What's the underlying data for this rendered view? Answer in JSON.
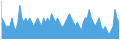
{
  "chart_data": {
    "type": "area",
    "values": [
      5,
      4,
      3,
      3,
      3,
      5,
      3,
      2,
      4,
      8,
      5,
      4,
      5,
      4,
      5,
      4,
      3,
      4,
      5,
      4,
      3,
      5,
      4,
      5,
      4,
      6,
      5,
      4,
      5,
      4,
      3,
      3,
      4,
      5,
      6,
      5,
      4,
      3,
      4,
      3,
      2,
      4,
      5,
      5,
      7,
      5,
      4,
      3,
      4,
      5,
      3,
      2,
      3,
      2,
      1,
      2,
      3,
      7,
      5,
      4
    ],
    "color": "#4da6e0",
    "ylim": [
      0,
      9
    ],
    "tick_labels": false
  }
}
